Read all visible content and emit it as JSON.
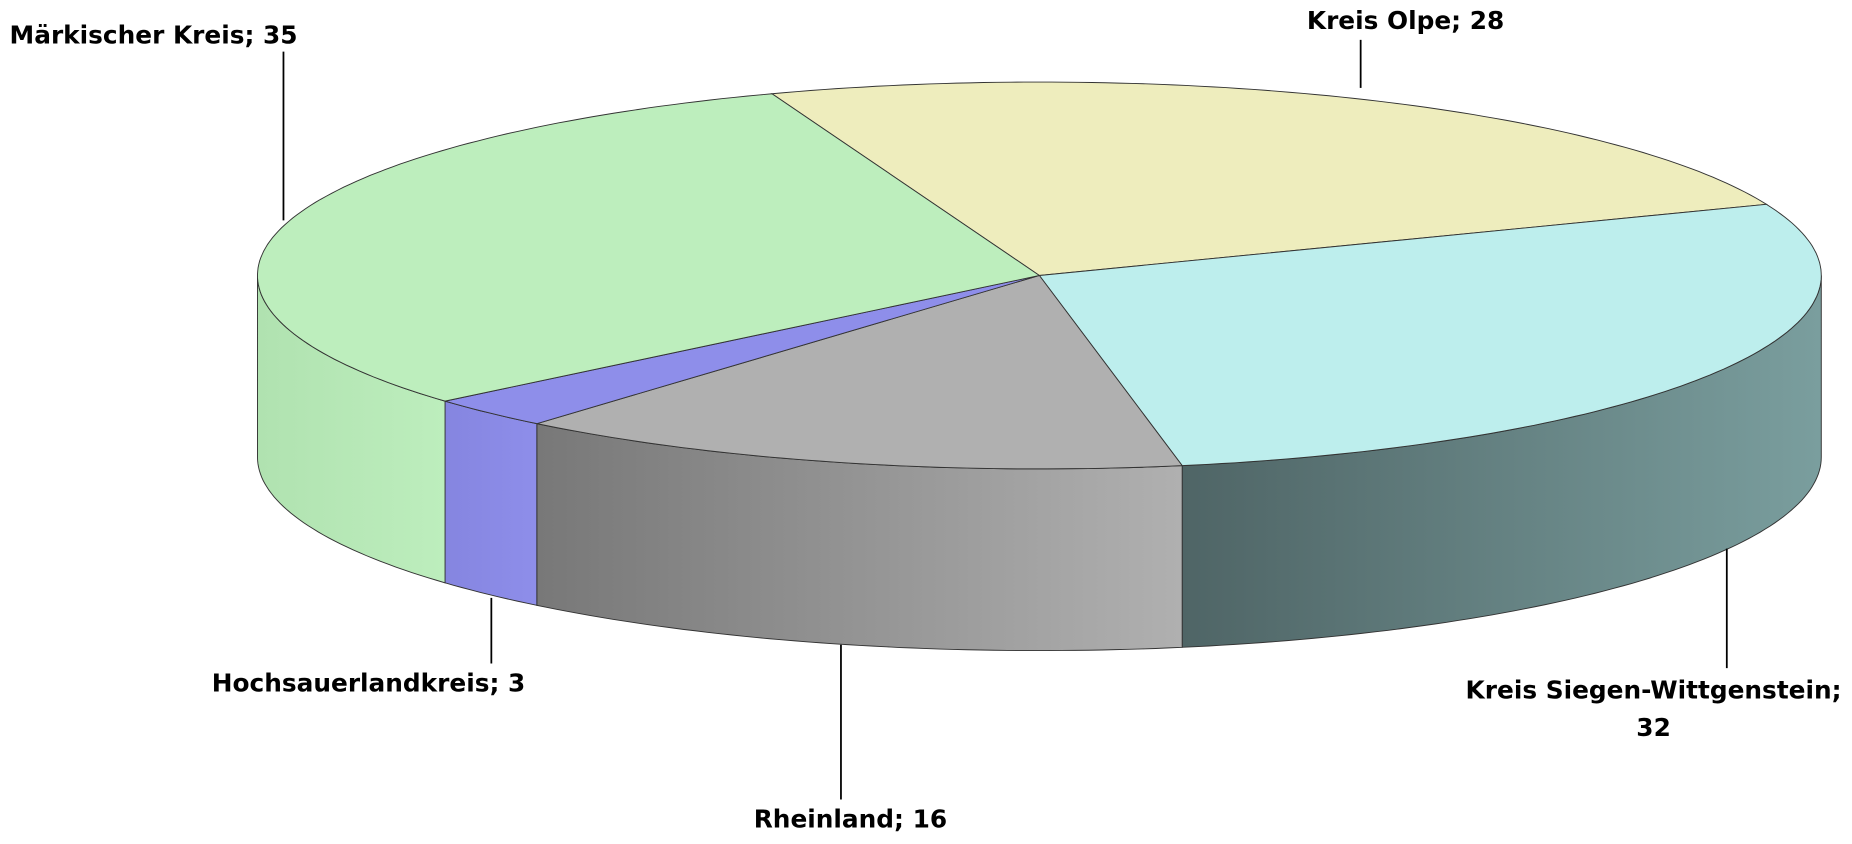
{
  "chart_data": {
    "type": "pie",
    "values": [
      28,
      32,
      16,
      3,
      35
    ],
    "value_labels": [
      "Kreis Olpe; 28",
      "Kreis Siegen-Wittgenstein; 32",
      "Rheinland; 16",
      "Hochsauerlandkreis; 3",
      "Märkischer Kreis; 35"
    ],
    "colors": [
      "#eeedbd",
      "#bdeeed",
      "#b0b0b0",
      "#8e8eea",
      "#bdeebd"
    ],
    "side_colors": [
      [
        "#c9c89a",
        "#a8a77c"
      ],
      [
        "#7a9e9e",
        "#4f6566"
      ],
      [
        "#b0b0b0",
        "#787878"
      ],
      [
        "#8e8eea",
        "#8585e0"
      ],
      [
        "#bdeebd",
        "#b0e2b0"
      ]
    ]
  }
}
